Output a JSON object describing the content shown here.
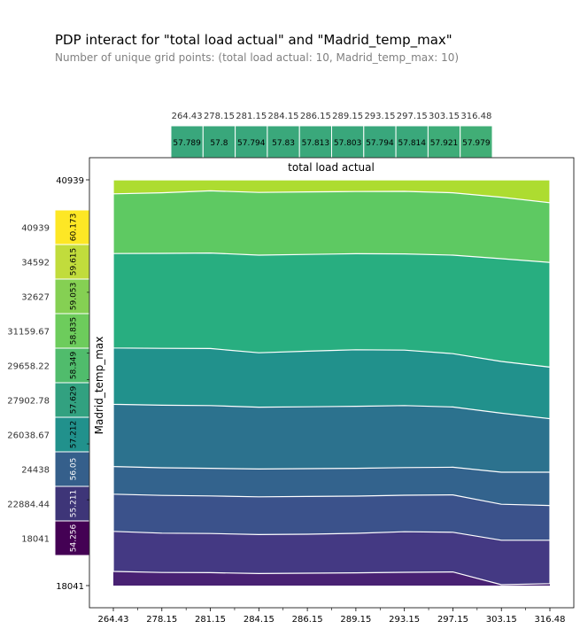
{
  "chart_data": {
    "type": "area",
    "title": "PDP interact for \"total load actual\" and \"Madrid_temp_max\"",
    "subtitle": "Number of unique grid points: (total load actual: 10, Madrid_temp_max: 10)",
    "xlabel": "total load actual",
    "ylabel": "Madrid_temp_max",
    "x_tick_labels": [
      "264.43",
      "278.15",
      "281.15",
      "284.15",
      "286.15",
      "289.15",
      "293.15",
      "297.15",
      "303.15",
      "316.48"
    ],
    "y_tick_labels": [
      "18041",
      "22884.44",
      "24438",
      "26038.67",
      "27902.78",
      "29658.22",
      "31159.67",
      "32627",
      "34592",
      "40939"
    ],
    "y_ticks_main": [
      "18041",
      "40939"
    ],
    "y_ticks_main_positions": [
      18041,
      40939
    ],
    "top_marginal": {
      "labels": [
        "264.43",
        "278.15",
        "281.15",
        "284.15",
        "286.15",
        "289.15",
        "293.15",
        "297.15",
        "303.15",
        "316.48"
      ],
      "values": [
        57.789,
        57.8,
        57.794,
        57.83,
        57.813,
        57.803,
        57.794,
        57.814,
        57.921,
        57.979
      ]
    },
    "left_marginal": {
      "labels": [
        "18041",
        "22884.44",
        "24438",
        "26038.67",
        "27902.78",
        "29658.22",
        "31159.67",
        "32627",
        "34592",
        "40939"
      ],
      "values": [
        54.256,
        55.211,
        56.05,
        57.212,
        57.629,
        58.349,
        58.835,
        59.053,
        59.615,
        60.173
      ]
    },
    "color_range": [
      54.256,
      60.173
    ],
    "ylim": [
      18041,
      40939
    ],
    "contour_bands": [
      {
        "color": "#482173",
        "y": [
          18041,
          18041,
          18041,
          18041,
          18041,
          18041,
          18041,
          18041,
          18041,
          18041
        ]
      },
      {
        "color": "#443983",
        "y": [
          18840,
          18780,
          18770,
          18720,
          18740,
          18760,
          18790,
          18810,
          18090,
          18150
        ]
      },
      {
        "color": "#3b528b",
        "y": [
          21100,
          21000,
          20980,
          20920,
          20940,
          20990,
          21080,
          21050,
          20600,
          20600
        ]
      },
      {
        "color": "#33638d",
        "y": [
          23200,
          23130,
          23100,
          23050,
          23070,
          23090,
          23140,
          23160,
          22630,
          22560
        ]
      },
      {
        "color": "#2c728e",
        "y": [
          24760,
          24690,
          24660,
          24620,
          24640,
          24660,
          24700,
          24720,
          24440,
          24440
        ]
      },
      {
        "color": "#21918c",
        "y": [
          28270,
          28220,
          28200,
          28110,
          28130,
          28160,
          28200,
          28120,
          27770,
          27460
        ]
      },
      {
        "color": "#28ae80",
        "y": [
          31450,
          31430,
          31420,
          31180,
          31270,
          31350,
          31330,
          31130,
          30690,
          30370
        ]
      },
      {
        "color": "#5ec962",
        "y": [
          36780,
          36790,
          36810,
          36690,
          36730,
          36770,
          36760,
          36690,
          36490,
          36280
        ]
      },
      {
        "color": "#addc30",
        "y": [
          40150,
          40210,
          40320,
          40230,
          40260,
          40280,
          40290,
          40210,
          39960,
          39650
        ]
      },
      {
        "color": "#fde725",
        "y": [
          40939,
          40939,
          40939,
          40939,
          40939,
          40939,
          40939,
          40939,
          40939,
          40939
        ]
      }
    ]
  }
}
